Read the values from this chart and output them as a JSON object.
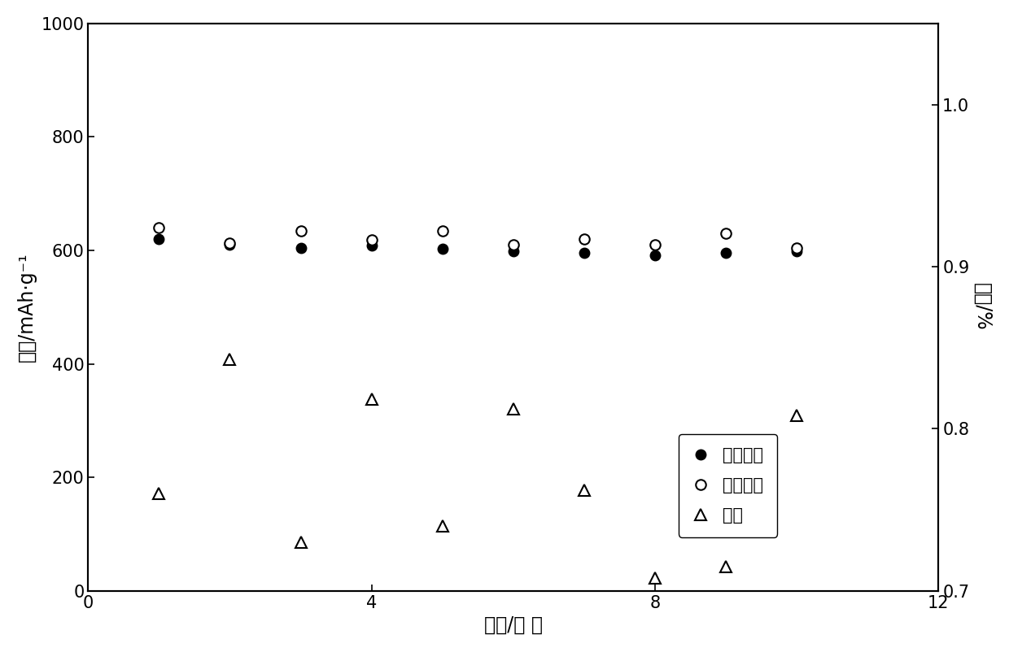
{
  "discharge_x": [
    1,
    2,
    3,
    4,
    5,
    6,
    7,
    8,
    9,
    10
  ],
  "discharge_y": [
    620,
    610,
    605,
    608,
    603,
    598,
    595,
    592,
    595,
    598
  ],
  "charge_x": [
    1,
    2,
    3,
    4,
    5,
    6,
    7,
    8,
    9,
    10
  ],
  "charge_y": [
    640,
    613,
    635,
    618,
    635,
    610,
    620,
    610,
    630,
    605
  ],
  "efficiency_x": [
    1,
    2,
    3,
    4,
    5,
    6,
    7,
    8,
    9,
    10
  ],
  "efficiency_y": [
    0.76,
    0.843,
    0.73,
    0.818,
    0.74,
    0.812,
    0.762,
    0.708,
    0.715,
    0.808
  ],
  "xlim": [
    0,
    12
  ],
  "ylim_left": [
    0,
    1000
  ],
  "ylim_right": [
    0.7,
    1.05
  ],
  "yticks_left": [
    0,
    200,
    400,
    600,
    800,
    1000
  ],
  "yticks_right": [
    0.7,
    0.8,
    0.9,
    1.0
  ],
  "xticks": [
    0,
    4,
    8,
    12
  ],
  "xlabel": "循环/次 数",
  "ylabel_left": "容量/mAh·g⁻¹",
  "ylabel_right": "效率/%",
  "legend_discharge": "放电容量",
  "legend_charge": "充电容量",
  "legend_efficiency": "效率",
  "marker_size_filled": 9,
  "marker_size_open": 9,
  "marker_size_triangle": 10,
  "background_color": "#ffffff"
}
